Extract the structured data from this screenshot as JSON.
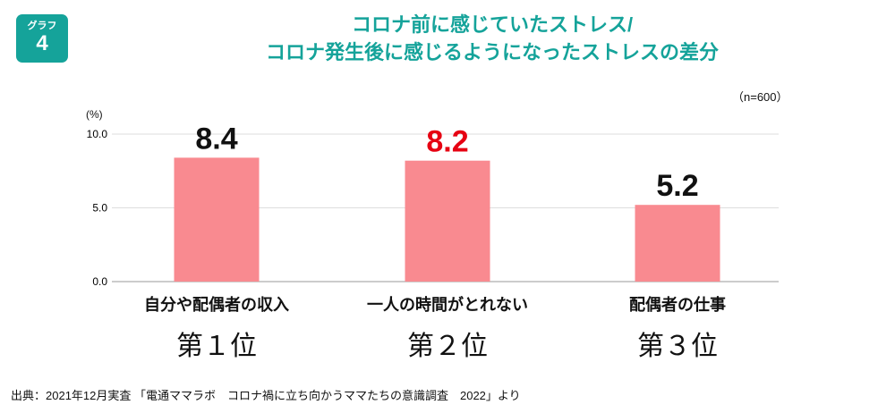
{
  "badge": {
    "label": "グラフ",
    "number": "4"
  },
  "title": {
    "line1": "コロナ前に感じていたストレス/",
    "line2": "コロナ発生後に感じるようになったストレスの差分"
  },
  "sample": "（n=600）",
  "colors": {
    "accent": "#15a39a",
    "bar": "#f98a90",
    "highlight": "#e60012"
  },
  "chart_data": {
    "type": "bar",
    "categories": [
      "自分や配偶者の収入",
      "一人の時間がとれない",
      "配偶者の仕事"
    ],
    "values": [
      8.4,
      8.2,
      5.2
    ],
    "data_labels": [
      "8.4",
      "8.2",
      "5.2"
    ],
    "ranks": [
      "第１位",
      "第２位",
      "第３位"
    ],
    "ylabel": "(%)",
    "yticks": [
      "0.0",
      "5.0",
      "10.0"
    ],
    "ylim": [
      0,
      10
    ],
    "grid": true
  },
  "source": "出典：2021年12月実査 「電通ママラボ　コロナ禍に立ち向かうママたちの意識調査　2022」より"
}
